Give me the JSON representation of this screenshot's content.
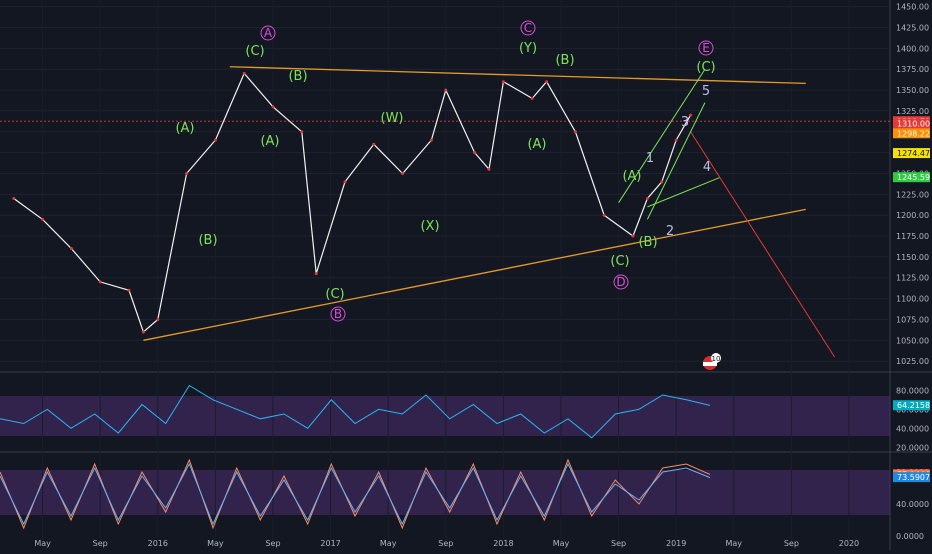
{
  "chart_data": [
    {
      "type": "line",
      "title": "",
      "y_axis": {
        "ticks": [
          "1450.00",
          "1425.00",
          "1400.00",
          "1375.00",
          "1350.00",
          "1325.00",
          "1300.00",
          "1275.00",
          "1250.00",
          "1225.00",
          "1200.00",
          "1175.00",
          "1150.00",
          "1125.00",
          "1100.00",
          "1075.00",
          "1050.00",
          "1025.00"
        ],
        "ylim": [
          1012,
          1458
        ]
      },
      "x_axis": {
        "ticks": [
          "May",
          "Sep",
          "2016",
          "May",
          "Sep",
          "2017",
          "May",
          "Sep",
          "2018",
          "May",
          "Sep",
          "2019",
          "May",
          "Sep",
          "2020"
        ]
      },
      "price_tags": [
        {
          "value": "1312.70",
          "color": "#e53935"
        },
        {
          "value": "1310.00",
          "color": "#e53935"
        },
        {
          "value": "1298.22",
          "color": "#ff8f00"
        },
        {
          "value": "1274.47",
          "color": "#f5e000"
        },
        {
          "value": "1245.59",
          "color": "#2ecc40"
        }
      ],
      "series": [
        {
          "name": "",
          "color": "#f2f2f2",
          "x": [
            "2015-03",
            "2015-05",
            "2015-07",
            "2015-09",
            "2015-11",
            "2015-12",
            "2016-01",
            "2016-03",
            "2016-05",
            "2016-07",
            "2016-09",
            "2016-11",
            "2016-12",
            "2017-02",
            "2017-04",
            "2017-06",
            "2017-08",
            "2017-09",
            "2017-11",
            "2017-12",
            "2018-01",
            "2018-03",
            "2018-04",
            "2018-06",
            "2018-08",
            "2018-10",
            "2018-11",
            "2018-12",
            "2019-01",
            "2019-02"
          ],
          "y": [
            1220,
            1195,
            1160,
            1120,
            1110,
            1060,
            1075,
            1250,
            1290,
            1370,
            1330,
            1300,
            1130,
            1240,
            1285,
            1250,
            1290,
            1350,
            1275,
            1255,
            1360,
            1340,
            1360,
            1300,
            1200,
            1175,
            1220,
            1240,
            1290,
            1320
          ]
        }
      ],
      "wave_labels": {
        "green": [
          "(C)",
          "(B)",
          "(A)",
          "(A)",
          "(B)",
          "(W)",
          "(X)",
          "(C)",
          "(Y)",
          "(B)",
          "(A)",
          "(C)",
          "(A)",
          "(B)",
          "(C)"
        ],
        "white": [
          "1",
          "2",
          "3",
          "4",
          "5"
        ],
        "circled": [
          "A",
          "B",
          "C",
          "D",
          "E"
        ]
      }
    },
    {
      "type": "line",
      "title": "",
      "y_axis": {
        "ticks": [
          "80.0000",
          "60.0000",
          "40.0000",
          "20.0000"
        ],
        "ylim": [
          15,
          95
        ]
      },
      "last_value_tag": {
        "value": "64.2158",
        "color": "#00acc1"
      },
      "series": [
        {
          "name": "",
          "color": "#29b6f6",
          "values": [
            50,
            45,
            60,
            40,
            55,
            35,
            65,
            45,
            85,
            70,
            60,
            50,
            55,
            40,
            70,
            45,
            60,
            55,
            75,
            50,
            65,
            45,
            55,
            35,
            50,
            30,
            55,
            60,
            75,
            70,
            64
          ]
        }
      ]
    },
    {
      "type": "line",
      "title": "",
      "y_axis": {
        "ticks": [
          "80.0000",
          "40.0000",
          "0.0000"
        ],
        "ylim": [
          -5,
          100
        ]
      },
      "last_value_tags": [
        {
          "value": "77.0446",
          "color": "#ff7043"
        },
        {
          "value": "73.5907",
          "color": "#1e88e5"
        }
      ],
      "series": [
        {
          "name": "",
          "color": "#ff8a65",
          "values": [
            80,
            10,
            85,
            20,
            90,
            15,
            80,
            30,
            95,
            10,
            85,
            20,
            75,
            15,
            90,
            25,
            80,
            10,
            85,
            30,
            90,
            15,
            80,
            20,
            95,
            25,
            70,
            40,
            85,
            90,
            77
          ]
        },
        {
          "name": "",
          "color": "#64b5f6",
          "values": [
            75,
            15,
            80,
            25,
            85,
            20,
            75,
            35,
            90,
            15,
            80,
            25,
            70,
            20,
            85,
            30,
            75,
            15,
            80,
            35,
            85,
            20,
            75,
            25,
            90,
            30,
            65,
            45,
            80,
            85,
            73
          ]
        }
      ]
    }
  ],
  "badge": {
    "count": "10"
  }
}
